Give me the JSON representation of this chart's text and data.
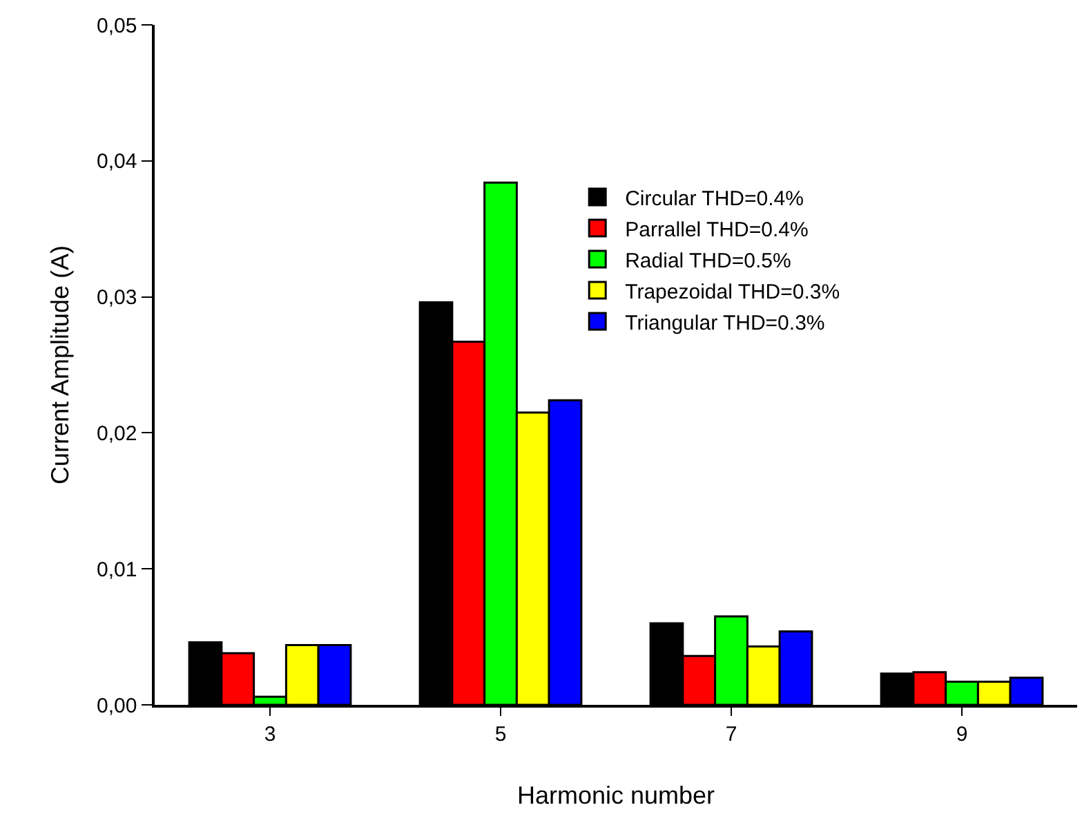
{
  "chart_data": {
    "type": "bar",
    "xlabel": "Harmonic number",
    "ylabel": "Current Amplitude (A)",
    "categories": [
      "3",
      "5",
      "7",
      "9"
    ],
    "series": [
      {
        "name": "Circular THD=0.4%",
        "color": "#000000",
        "values": [
          0.0046,
          0.0296,
          0.006,
          0.0023
        ]
      },
      {
        "name": "Parrallel THD=0.4%",
        "color": "#ff0000",
        "values": [
          0.0038,
          0.0267,
          0.0036,
          0.0024
        ]
      },
      {
        "name": "Radial THD=0.5%",
        "color": "#00ff00",
        "values": [
          0.0006,
          0.0384,
          0.0065,
          0.0017
        ]
      },
      {
        "name": "Trapezoidal THD=0.3%",
        "color": "#ffff00",
        "values": [
          0.0044,
          0.0215,
          0.0043,
          0.0017
        ]
      },
      {
        "name": "Triangular THD=0.3%",
        "color": "#0000ff",
        "values": [
          0.0044,
          0.0224,
          0.0054,
          0.002
        ]
      }
    ],
    "ylim": [
      0,
      0.05
    ],
    "yticks": [
      {
        "value": 0,
        "label": "0,00"
      },
      {
        "value": 0.01,
        "label": "0,01"
      },
      {
        "value": 0.02,
        "label": "0,02"
      },
      {
        "value": 0.03,
        "label": "0,03"
      },
      {
        "value": 0.04,
        "label": "0,04"
      },
      {
        "value": 0.05,
        "label": "0,05"
      }
    ],
    "legend": "top right"
  }
}
